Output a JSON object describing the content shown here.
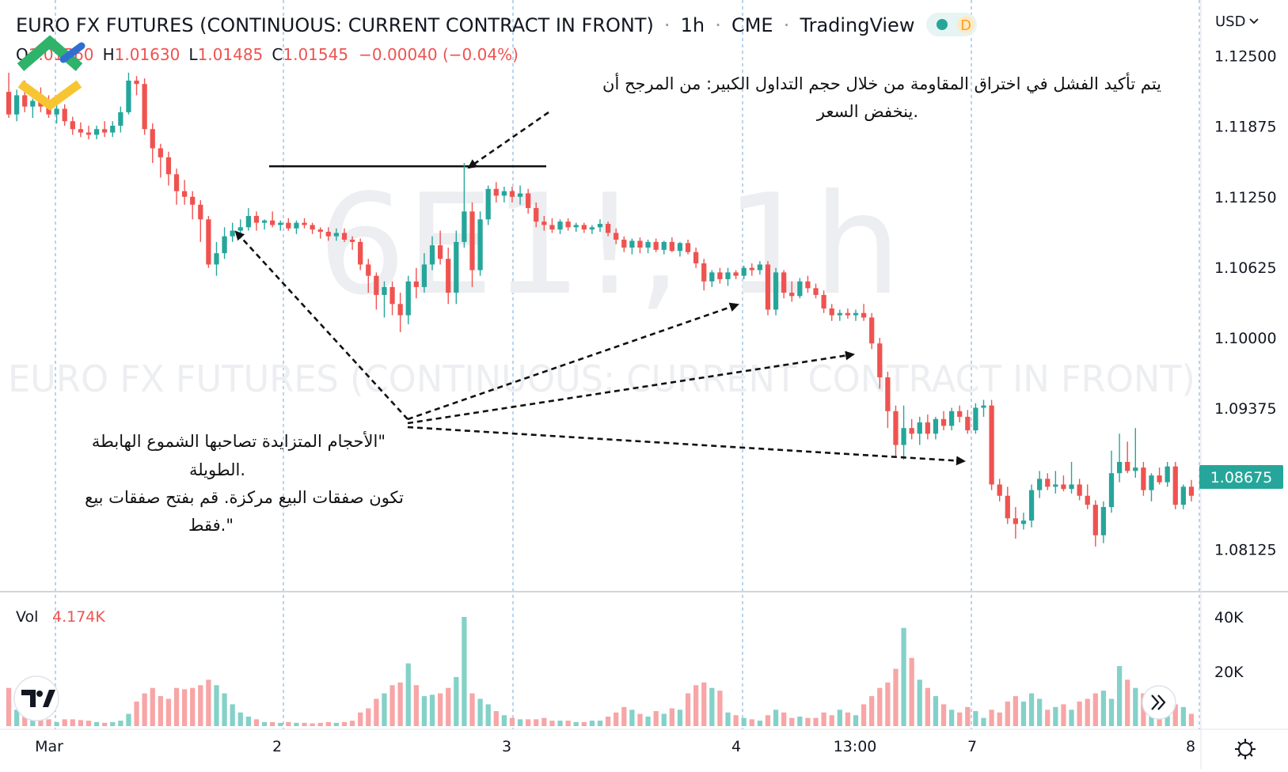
{
  "header": {
    "title": "EURO FX FUTURES (CONTINUOUS: CURRENT CONTRACT IN FRONT)",
    "interval": "1h",
    "exchange": "CME",
    "platform": "TradingView",
    "badge_letter": "D",
    "separator": "·"
  },
  "ohlc": {
    "o_label": "O",
    "o_value": "1.01560",
    "h_label": "H",
    "h_value": "1.01630",
    "l_label": "L",
    "l_value": "1.01485",
    "c_label": "C",
    "c_value": "1.01545",
    "change": "−0.00040 (−0.04%)"
  },
  "watermark": {
    "symbol": "6E1!, 1h",
    "name": "EURO FX FUTURES (CONTINUOUS: CURRENT CONTRACT IN FRONT)"
  },
  "currency_button": "USD",
  "last_price_label": "1.08675",
  "volume": {
    "label": "Vol",
    "value": "4.174K"
  },
  "annotations": {
    "top_line1": "يتم تأكيد الفشل في اختراق المقاومة من خلال حجم التداول الكبير: من المرجح أن",
    "top_line2": "ينخفض السعر.",
    "left_line1": "الأحجام المتزايدة تصاحبها الشموع الهابطة\"",
    "left_line2": "الطويلة.",
    "left_line3": "تكون صفقات البيع مركزة. قم بفتح صفقات بيع",
    "left_line4": "فقط.\""
  },
  "colors": {
    "up": "#26a69a",
    "down": "#ef5350",
    "vol_up": "#84d1c8",
    "vol_down": "#f7a5a6"
  },
  "icons": {
    "logo": "litefinance-logo-icon",
    "tv": "tradingview-logo-icon",
    "scroll": "double-chevron-right-icon",
    "settings": "gear-icon"
  },
  "chart_data": {
    "type": "candlestick",
    "y_axis": {
      "ticks": [
        "1.12500",
        "1.11875",
        "1.11250",
        "1.10625",
        "1.10000",
        "1.09375",
        "1.08125"
      ],
      "range": [
        1.0775,
        1.127
      ]
    },
    "volume_axis": {
      "ticks": [
        "40K",
        "20K"
      ],
      "max": 40000
    },
    "x_axis": {
      "ticks": [
        "Mar",
        "2",
        "3",
        "4",
        "13:00",
        "7",
        "8"
      ]
    },
    "resistance_level": 1.1152,
    "candles": [
      {
        "o": 1.1218,
        "h": 1.1235,
        "l": 1.1195,
        "c": 1.1198,
        "v": 14000
      },
      {
        "o": 1.1198,
        "h": 1.122,
        "l": 1.1192,
        "c": 1.1215,
        "v": 6000
      },
      {
        "o": 1.1215,
        "h": 1.1228,
        "l": 1.12,
        "c": 1.1205,
        "v": 5000
      },
      {
        "o": 1.1205,
        "h": 1.1212,
        "l": 1.1195,
        "c": 1.121,
        "v": 4000
      },
      {
        "o": 1.121,
        "h": 1.1222,
        "l": 1.12,
        "c": 1.1205,
        "v": 3000
      },
      {
        "o": 1.1205,
        "h": 1.1215,
        "l": 1.1195,
        "c": 1.1198,
        "v": 2500
      },
      {
        "o": 1.1198,
        "h": 1.1206,
        "l": 1.119,
        "c": 1.1203,
        "v": 1500
      },
      {
        "o": 1.1203,
        "h": 1.1207,
        "l": 1.1188,
        "c": 1.1192,
        "v": 2500
      },
      {
        "o": 1.1192,
        "h": 1.1196,
        "l": 1.118,
        "c": 1.1185,
        "v": 2500
      },
      {
        "o": 1.1185,
        "h": 1.1191,
        "l": 1.1178,
        "c": 1.1182,
        "v": 2200
      },
      {
        "o": 1.1182,
        "h": 1.1188,
        "l": 1.1176,
        "c": 1.118,
        "v": 2000
      },
      {
        "o": 1.118,
        "h": 1.1188,
        "l": 1.1176,
        "c": 1.1185,
        "v": 1500
      },
      {
        "o": 1.1185,
        "h": 1.1192,
        "l": 1.1178,
        "c": 1.1182,
        "v": 1200
      },
      {
        "o": 1.1182,
        "h": 1.1192,
        "l": 1.1178,
        "c": 1.1188,
        "v": 1500
      },
      {
        "o": 1.1188,
        "h": 1.1205,
        "l": 1.1182,
        "c": 1.12,
        "v": 2000
      },
      {
        "o": 1.12,
        "h": 1.1235,
        "l": 1.1198,
        "c": 1.1228,
        "v": 4500
      },
      {
        "o": 1.1228,
        "h": 1.1232,
        "l": 1.1215,
        "c": 1.1225,
        "v": 9000
      },
      {
        "o": 1.1225,
        "h": 1.123,
        "l": 1.118,
        "c": 1.1185,
        "v": 12000
      },
      {
        "o": 1.1185,
        "h": 1.119,
        "l": 1.1155,
        "c": 1.1168,
        "v": 14000
      },
      {
        "o": 1.1168,
        "h": 1.1172,
        "l": 1.1142,
        "c": 1.116,
        "v": 11000
      },
      {
        "o": 1.116,
        "h": 1.1165,
        "l": 1.1135,
        "c": 1.1145,
        "v": 10000
      },
      {
        "o": 1.1145,
        "h": 1.115,
        "l": 1.1118,
        "c": 1.113,
        "v": 14000
      },
      {
        "o": 1.113,
        "h": 1.114,
        "l": 1.1118,
        "c": 1.1125,
        "v": 13500
      },
      {
        "o": 1.1125,
        "h": 1.113,
        "l": 1.1105,
        "c": 1.1118,
        "v": 14000
      },
      {
        "o": 1.1118,
        "h": 1.1122,
        "l": 1.1085,
        "c": 1.1105,
        "v": 15000
      },
      {
        "o": 1.1105,
        "h": 1.1108,
        "l": 1.1062,
        "c": 1.1065,
        "v": 17000
      },
      {
        "o": 1.1065,
        "h": 1.1085,
        "l": 1.1055,
        "c": 1.1075,
        "v": 15000
      },
      {
        "o": 1.1075,
        "h": 1.1098,
        "l": 1.107,
        "c": 1.109,
        "v": 12000
      },
      {
        "o": 1.109,
        "h": 1.1102,
        "l": 1.1085,
        "c": 1.1095,
        "v": 8000
      },
      {
        "o": 1.1095,
        "h": 1.1105,
        "l": 1.1088,
        "c": 1.1098,
        "v": 5000
      },
      {
        "o": 1.1098,
        "h": 1.1115,
        "l": 1.1095,
        "c": 1.1108,
        "v": 3500
      },
      {
        "o": 1.1108,
        "h": 1.1112,
        "l": 1.1095,
        "c": 1.1102,
        "v": 2500
      },
      {
        "o": 1.1102,
        "h": 1.1105,
        "l": 1.1096,
        "c": 1.1104,
        "v": 1500
      },
      {
        "o": 1.1104,
        "h": 1.1112,
        "l": 1.1098,
        "c": 1.11,
        "v": 1500
      },
      {
        "o": 1.11,
        "h": 1.1104,
        "l": 1.1095,
        "c": 1.1102,
        "v": 1200
      },
      {
        "o": 1.1102,
        "h": 1.1106,
        "l": 1.1095,
        "c": 1.1097,
        "v": 1500
      },
      {
        "o": 1.1097,
        "h": 1.1104,
        "l": 1.1092,
        "c": 1.1102,
        "v": 1200
      },
      {
        "o": 1.1102,
        "h": 1.1106,
        "l": 1.1097,
        "c": 1.11,
        "v": 1200
      },
      {
        "o": 1.11,
        "h": 1.1102,
        "l": 1.1092,
        "c": 1.1096,
        "v": 1000
      },
      {
        "o": 1.1096,
        "h": 1.1098,
        "l": 1.1088,
        "c": 1.1094,
        "v": 1200
      },
      {
        "o": 1.1094,
        "h": 1.1098,
        "l": 1.1086,
        "c": 1.109,
        "v": 1500
      },
      {
        "o": 1.109,
        "h": 1.1097,
        "l": 1.1086,
        "c": 1.1093,
        "v": 1200
      },
      {
        "o": 1.1093,
        "h": 1.1097,
        "l": 1.1085,
        "c": 1.1087,
        "v": 1500
      },
      {
        "o": 1.1087,
        "h": 1.109,
        "l": 1.1078,
        "c": 1.1085,
        "v": 2000
      },
      {
        "o": 1.1085,
        "h": 1.1088,
        "l": 1.106,
        "c": 1.1065,
        "v": 5000
      },
      {
        "o": 1.1065,
        "h": 1.107,
        "l": 1.104,
        "c": 1.1055,
        "v": 6500
      },
      {
        "o": 1.1055,
        "h": 1.1058,
        "l": 1.1025,
        "c": 1.1038,
        "v": 10000
      },
      {
        "o": 1.1038,
        "h": 1.105,
        "l": 1.1018,
        "c": 1.1045,
        "v": 12000
      },
      {
        "o": 1.1045,
        "h": 1.105,
        "l": 1.102,
        "c": 1.103,
        "v": 15000
      },
      {
        "o": 1.103,
        "h": 1.104,
        "l": 1.1005,
        "c": 1.102,
        "v": 16000
      },
      {
        "o": 1.102,
        "h": 1.1055,
        "l": 1.1012,
        "c": 1.105,
        "v": 23000
      },
      {
        "o": 1.105,
        "h": 1.1062,
        "l": 1.1035,
        "c": 1.1045,
        "v": 15000
      },
      {
        "o": 1.1045,
        "h": 1.1075,
        "l": 1.104,
        "c": 1.1065,
        "v": 11000
      },
      {
        "o": 1.1065,
        "h": 1.109,
        "l": 1.106,
        "c": 1.1082,
        "v": 11500
      },
      {
        "o": 1.1082,
        "h": 1.1095,
        "l": 1.1065,
        "c": 1.107,
        "v": 12000
      },
      {
        "o": 1.107,
        "h": 1.108,
        "l": 1.103,
        "c": 1.104,
        "v": 14000
      },
      {
        "o": 1.104,
        "h": 1.1095,
        "l": 1.103,
        "c": 1.1085,
        "v": 18000
      },
      {
        "o": 1.1085,
        "h": 1.1155,
        "l": 1.108,
        "c": 1.1112,
        "v": 40000
      },
      {
        "o": 1.1112,
        "h": 1.112,
        "l": 1.1045,
        "c": 1.106,
        "v": 12000
      },
      {
        "o": 1.106,
        "h": 1.1112,
        "l": 1.1055,
        "c": 1.1105,
        "v": 10000
      },
      {
        "o": 1.1105,
        "h": 1.1135,
        "l": 1.11,
        "c": 1.1132,
        "v": 8000
      },
      {
        "o": 1.1132,
        "h": 1.1138,
        "l": 1.112,
        "c": 1.1126,
        "v": 5500
      },
      {
        "o": 1.1126,
        "h": 1.1134,
        "l": 1.112,
        "c": 1.113,
        "v": 4000
      },
      {
        "o": 1.113,
        "h": 1.1134,
        "l": 1.112,
        "c": 1.1125,
        "v": 3000
      },
      {
        "o": 1.1125,
        "h": 1.1135,
        "l": 1.1118,
        "c": 1.1128,
        "v": 2500
      },
      {
        "o": 1.1128,
        "h": 1.1132,
        "l": 1.111,
        "c": 1.1115,
        "v": 2500
      },
      {
        "o": 1.1115,
        "h": 1.112,
        "l": 1.1098,
        "c": 1.1103,
        "v": 2500
      },
      {
        "o": 1.1103,
        "h": 1.1108,
        "l": 1.1095,
        "c": 1.11,
        "v": 3000
      },
      {
        "o": 1.11,
        "h": 1.1106,
        "l": 1.1093,
        "c": 1.1096,
        "v": 2000
      },
      {
        "o": 1.1096,
        "h": 1.1105,
        "l": 1.1092,
        "c": 1.1103,
        "v": 2000
      },
      {
        "o": 1.1103,
        "h": 1.1106,
        "l": 1.1095,
        "c": 1.1098,
        "v": 2000
      },
      {
        "o": 1.1098,
        "h": 1.1102,
        "l": 1.1094,
        "c": 1.11,
        "v": 1500
      },
      {
        "o": 1.11,
        "h": 1.1102,
        "l": 1.1093,
        "c": 1.1096,
        "v": 1500
      },
      {
        "o": 1.1096,
        "h": 1.11,
        "l": 1.1092,
        "c": 1.1098,
        "v": 2000
      },
      {
        "o": 1.1098,
        "h": 1.1105,
        "l": 1.1094,
        "c": 1.1101,
        "v": 2000
      },
      {
        "o": 1.1101,
        "h": 1.1103,
        "l": 1.109,
        "c": 1.1093,
        "v": 3500
      },
      {
        "o": 1.1093,
        "h": 1.1097,
        "l": 1.1083,
        "c": 1.1087,
        "v": 5000
      },
      {
        "o": 1.1087,
        "h": 1.109,
        "l": 1.1076,
        "c": 1.108,
        "v": 7000
      },
      {
        "o": 1.108,
        "h": 1.1088,
        "l": 1.1074,
        "c": 1.1086,
        "v": 6000
      },
      {
        "o": 1.1086,
        "h": 1.1089,
        "l": 1.1075,
        "c": 1.108,
        "v": 4500
      },
      {
        "o": 1.108,
        "h": 1.1087,
        "l": 1.1075,
        "c": 1.1085,
        "v": 3500
      },
      {
        "o": 1.1085,
        "h": 1.1088,
        "l": 1.1076,
        "c": 1.1078,
        "v": 5500
      },
      {
        "o": 1.1078,
        "h": 1.1086,
        "l": 1.1074,
        "c": 1.1085,
        "v": 4500
      },
      {
        "o": 1.1085,
        "h": 1.1089,
        "l": 1.1076,
        "c": 1.1077,
        "v": 6500
      },
      {
        "o": 1.1077,
        "h": 1.1085,
        "l": 1.1072,
        "c": 1.1084,
        "v": 6000
      },
      {
        "o": 1.1084,
        "h": 1.1087,
        "l": 1.1074,
        "c": 1.1076,
        "v": 12000
      },
      {
        "o": 1.1076,
        "h": 1.108,
        "l": 1.1062,
        "c": 1.1066,
        "v": 15000
      },
      {
        "o": 1.1066,
        "h": 1.107,
        "l": 1.1042,
        "c": 1.105,
        "v": 16000
      },
      {
        "o": 1.105,
        "h": 1.106,
        "l": 1.1045,
        "c": 1.1058,
        "v": 14000
      },
      {
        "o": 1.1058,
        "h": 1.1062,
        "l": 1.1048,
        "c": 1.1052,
        "v": 13000
      },
      {
        "o": 1.1052,
        "h": 1.1062,
        "l": 1.1046,
        "c": 1.1058,
        "v": 5000
      },
      {
        "o": 1.1058,
        "h": 1.106,
        "l": 1.1052,
        "c": 1.1055,
        "v": 4000
      },
      {
        "o": 1.1055,
        "h": 1.1064,
        "l": 1.1052,
        "c": 1.1062,
        "v": 3000
      },
      {
        "o": 1.1062,
        "h": 1.1066,
        "l": 1.1055,
        "c": 1.106,
        "v": 2500
      },
      {
        "o": 1.106,
        "h": 1.1068,
        "l": 1.1056,
        "c": 1.1065,
        "v": 2000
      },
      {
        "o": 1.1065,
        "h": 1.1068,
        "l": 1.102,
        "c": 1.1025,
        "v": 4000
      },
      {
        "o": 1.1025,
        "h": 1.1062,
        "l": 1.102,
        "c": 1.1058,
        "v": 6000
      },
      {
        "o": 1.1058,
        "h": 1.106,
        "l": 1.1035,
        "c": 1.104,
        "v": 5000
      },
      {
        "o": 1.104,
        "h": 1.105,
        "l": 1.1032,
        "c": 1.1037,
        "v": 3000
      },
      {
        "o": 1.1037,
        "h": 1.1053,
        "l": 1.1035,
        "c": 1.105,
        "v": 3500
      },
      {
        "o": 1.105,
        "h": 1.1055,
        "l": 1.104,
        "c": 1.1044,
        "v": 3000
      },
      {
        "o": 1.1044,
        "h": 1.1048,
        "l": 1.1035,
        "c": 1.1038,
        "v": 3000
      },
      {
        "o": 1.1038,
        "h": 1.1042,
        "l": 1.1022,
        "c": 1.1026,
        "v": 5000
      },
      {
        "o": 1.1026,
        "h": 1.103,
        "l": 1.1015,
        "c": 1.102,
        "v": 4000
      },
      {
        "o": 1.102,
        "h": 1.1025,
        "l": 1.1015,
        "c": 1.1022,
        "v": 6000
      },
      {
        "o": 1.1022,
        "h": 1.1026,
        "l": 1.1017,
        "c": 1.102,
        "v": 5000
      },
      {
        "o": 1.102,
        "h": 1.1025,
        "l": 1.1015,
        "c": 1.1022,
        "v": 4000
      },
      {
        "o": 1.1022,
        "h": 1.103,
        "l": 1.1015,
        "c": 1.1018,
        "v": 8000
      },
      {
        "o": 1.1018,
        "h": 1.1022,
        "l": 1.099,
        "c": 1.0995,
        "v": 11000
      },
      {
        "o": 1.0995,
        "h": 1.1,
        "l": 1.0955,
        "c": 1.0965,
        "v": 14000
      },
      {
        "o": 1.0965,
        "h": 1.097,
        "l": 1.092,
        "c": 1.0935,
        "v": 16000
      },
      {
        "o": 1.0935,
        "h": 1.094,
        "l": 1.0895,
        "c": 1.0905,
        "v": 21000
      },
      {
        "o": 1.0905,
        "h": 1.094,
        "l": 1.0892,
        "c": 1.092,
        "v": 36000
      },
      {
        "o": 1.092,
        "h": 1.0928,
        "l": 1.091,
        "c": 1.0915,
        "v": 25000
      },
      {
        "o": 1.0915,
        "h": 1.093,
        "l": 1.0905,
        "c": 1.0925,
        "v": 17000
      },
      {
        "o": 1.0925,
        "h": 1.0932,
        "l": 1.091,
        "c": 1.0915,
        "v": 14000
      },
      {
        "o": 1.0915,
        "h": 1.093,
        "l": 1.091,
        "c": 1.0928,
        "v": 11000
      },
      {
        "o": 1.0928,
        "h": 1.0935,
        "l": 1.0918,
        "c": 1.0922,
        "v": 8000
      },
      {
        "o": 1.0922,
        "h": 1.0938,
        "l": 1.0918,
        "c": 1.0935,
        "v": 6000
      },
      {
        "o": 1.0935,
        "h": 1.094,
        "l": 1.0925,
        "c": 1.093,
        "v": 5000
      },
      {
        "o": 1.093,
        "h": 1.0936,
        "l": 1.0915,
        "c": 1.0918,
        "v": 7000
      },
      {
        "o": 1.0918,
        "h": 1.0942,
        "l": 1.0915,
        "c": 1.0938,
        "v": 5500
      },
      {
        "o": 1.0938,
        "h": 1.0945,
        "l": 1.093,
        "c": 1.094,
        "v": 3000
      },
      {
        "o": 1.094,
        "h": 1.0945,
        "l": 1.0865,
        "c": 1.087,
        "v": 6000
      },
      {
        "o": 1.087,
        "h": 1.0875,
        "l": 1.0855,
        "c": 1.086,
        "v": 5000
      },
      {
        "o": 1.086,
        "h": 1.0868,
        "l": 1.0835,
        "c": 1.084,
        "v": 9000
      },
      {
        "o": 1.084,
        "h": 1.085,
        "l": 1.0822,
        "c": 1.0835,
        "v": 11000
      },
      {
        "o": 1.0835,
        "h": 1.0845,
        "l": 1.083,
        "c": 1.0838,
        "v": 9000
      },
      {
        "o": 1.0838,
        "h": 1.087,
        "l": 1.0832,
        "c": 1.0865,
        "v": 12000
      },
      {
        "o": 1.0865,
        "h": 1.0882,
        "l": 1.0858,
        "c": 1.0875,
        "v": 10000
      },
      {
        "o": 1.0875,
        "h": 1.088,
        "l": 1.0865,
        "c": 1.0868,
        "v": 6000
      },
      {
        "o": 1.0868,
        "h": 1.0882,
        "l": 1.0862,
        "c": 1.087,
        "v": 7000
      },
      {
        "o": 1.087,
        "h": 1.0878,
        "l": 1.0864,
        "c": 1.0866,
        "v": 8000
      },
      {
        "o": 1.0866,
        "h": 1.089,
        "l": 1.0862,
        "c": 1.087,
        "v": 6000
      },
      {
        "o": 1.087,
        "h": 1.0875,
        "l": 1.0856,
        "c": 1.086,
        "v": 9000
      },
      {
        "o": 1.086,
        "h": 1.087,
        "l": 1.0848,
        "c": 1.0852,
        "v": 10000
      },
      {
        "o": 1.0852,
        "h": 1.0856,
        "l": 1.0815,
        "c": 1.0825,
        "v": 12000
      },
      {
        "o": 1.0825,
        "h": 1.0855,
        "l": 1.0818,
        "c": 1.085,
        "v": 13000
      },
      {
        "o": 1.085,
        "h": 1.09,
        "l": 1.0845,
        "c": 1.088,
        "v": 10000
      },
      {
        "o": 1.088,
        "h": 1.0915,
        "l": 1.0872,
        "c": 1.089,
        "v": 22000
      },
      {
        "o": 1.089,
        "h": 1.0908,
        "l": 1.088,
        "c": 1.0882,
        "v": 17000
      },
      {
        "o": 1.0882,
        "h": 1.092,
        "l": 1.0876,
        "c": 1.0885,
        "v": 14000
      },
      {
        "o": 1.0885,
        "h": 1.089,
        "l": 1.086,
        "c": 1.0865,
        "v": 12000
      },
      {
        "o": 1.0865,
        "h": 1.088,
        "l": 1.0855,
        "c": 1.0878,
        "v": 8000
      },
      {
        "o": 1.0878,
        "h": 1.0885,
        "l": 1.087,
        "c": 1.0872,
        "v": 6000
      },
      {
        "o": 1.0872,
        "h": 1.089,
        "l": 1.0868,
        "c": 1.0886,
        "v": 5000
      },
      {
        "o": 1.0886,
        "h": 1.089,
        "l": 1.0848,
        "c": 1.0852,
        "v": 8000
      },
      {
        "o": 1.0852,
        "h": 1.087,
        "l": 1.0848,
        "c": 1.0868,
        "v": 7000
      },
      {
        "o": 1.0868,
        "h": 1.0874,
        "l": 1.0855,
        "c": 1.086,
        "v": 4500
      }
    ]
  }
}
